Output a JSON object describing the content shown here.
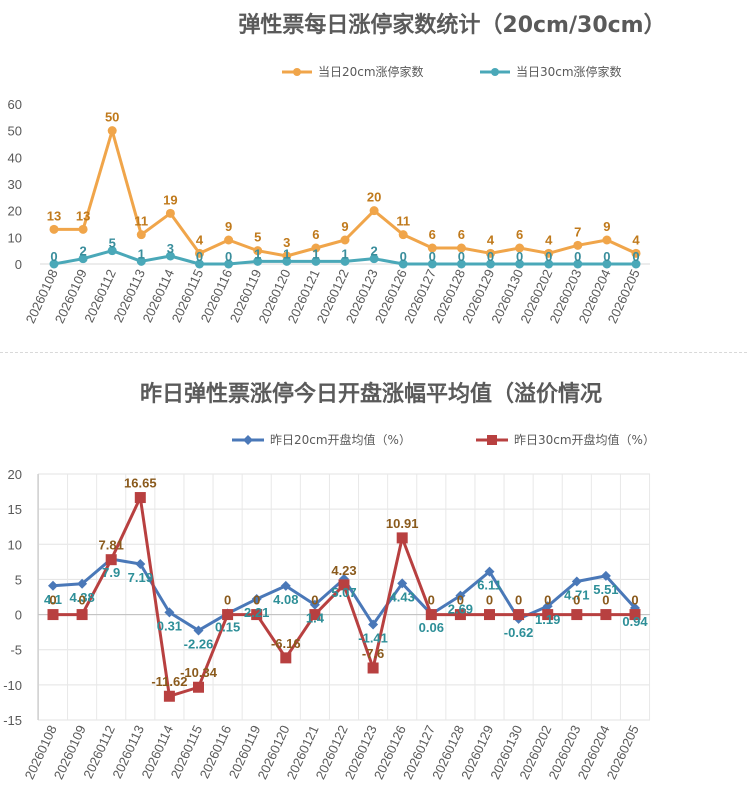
{
  "chart_data": [
    {
      "type": "line",
      "title": "弹性票每日涨停家数统计（20cm/30cm）",
      "categories": [
        "20260108",
        "20260109",
        "20260112",
        "20260113",
        "20260114",
        "20260115",
        "20260116",
        "20260119",
        "20260120",
        "20260121",
        "20260122",
        "20260123",
        "20260126",
        "20260127",
        "20260128",
        "20260129",
        "20260130",
        "20260202",
        "20260203",
        "20260204",
        "20260205"
      ],
      "ylim": [
        0,
        60
      ],
      "yticks": [
        0,
        10,
        20,
        30,
        40,
        50,
        60
      ],
      "legend": "top",
      "grid": false,
      "series": [
        {
          "name": "当日20cm涨停家数",
          "color": "#f0a54a",
          "label_color": "#c07a1c",
          "values": [
            13,
            13,
            50,
            11,
            19,
            4,
            9,
            5,
            3,
            6,
            9,
            20,
            11,
            6,
            6,
            4,
            6,
            4,
            7,
            9,
            4
          ]
        },
        {
          "name": "当日30cm涨停家数",
          "color": "#4aa8b8",
          "label_color": "#3a8e9c",
          "values": [
            0,
            2,
            5,
            1,
            3,
            0,
            0,
            1,
            1,
            1,
            1,
            2,
            0,
            0,
            0,
            0,
            0,
            0,
            0,
            0,
            0
          ]
        }
      ]
    },
    {
      "type": "line",
      "title": "昨日弹性票涨停今日开盘涨幅平均值（溢价情况",
      "categories": [
        "20260108",
        "20260109",
        "20260112",
        "20260113",
        "20260114",
        "20260115",
        "20260116",
        "20260119",
        "20260120",
        "20260121",
        "20260122",
        "20260123",
        "20260126",
        "20260127",
        "20260128",
        "20260129",
        "20260130",
        "20260202",
        "20260203",
        "20260204",
        "20260205"
      ],
      "ylim": [
        -15,
        20
      ],
      "yticks": [
        -15,
        -10,
        -5,
        0,
        5,
        10,
        15,
        20
      ],
      "legend": "top",
      "grid": true,
      "series": [
        {
          "name": "昨日20cm开盘均值（%）",
          "color": "#4a78b8",
          "label_color": "#2e8f98",
          "values": [
            4.1,
            4.38,
            7.9,
            7.19,
            0.31,
            -2.26,
            0.15,
            2.21,
            4.08,
            1.4,
            5.07,
            -1.41,
            4.43,
            0.06,
            2.69,
            6.11,
            -0.62,
            1.19,
            4.71,
            5.51,
            0.94
          ],
          "labels": [
            "4.1",
            "4.38",
            "7.9",
            "7.19",
            "0.31",
            "-2.26",
            "0.15",
            "2.21",
            "4.08",
            "1.4",
            "5.07",
            "-1.41",
            "4.43",
            "0.06",
            "2.69",
            "6.11",
            "-0.62",
            "1.19",
            "4.71",
            "5.51",
            "0.94"
          ]
        },
        {
          "name": "昨日30cm开盘均值（%）",
          "color": "#b84040",
          "label_color": "#8a5a1c",
          "values": [
            0,
            0,
            7.81,
            16.65,
            -11.62,
            -10.34,
            0,
            0,
            -6.16,
            0,
            4.23,
            -7.6,
            10.91,
            0,
            0,
            0,
            0,
            0,
            0,
            0,
            0
          ],
          "labels": [
            "0",
            "0",
            "7.81",
            "16.65",
            "-11.62",
            "-10.34",
            "0",
            "0",
            "-6.16",
            "0",
            "4.23",
            "-7.6",
            "10.91",
            "0",
            "0",
            "0",
            "0",
            "0",
            "0",
            "0",
            "0"
          ]
        }
      ]
    }
  ]
}
